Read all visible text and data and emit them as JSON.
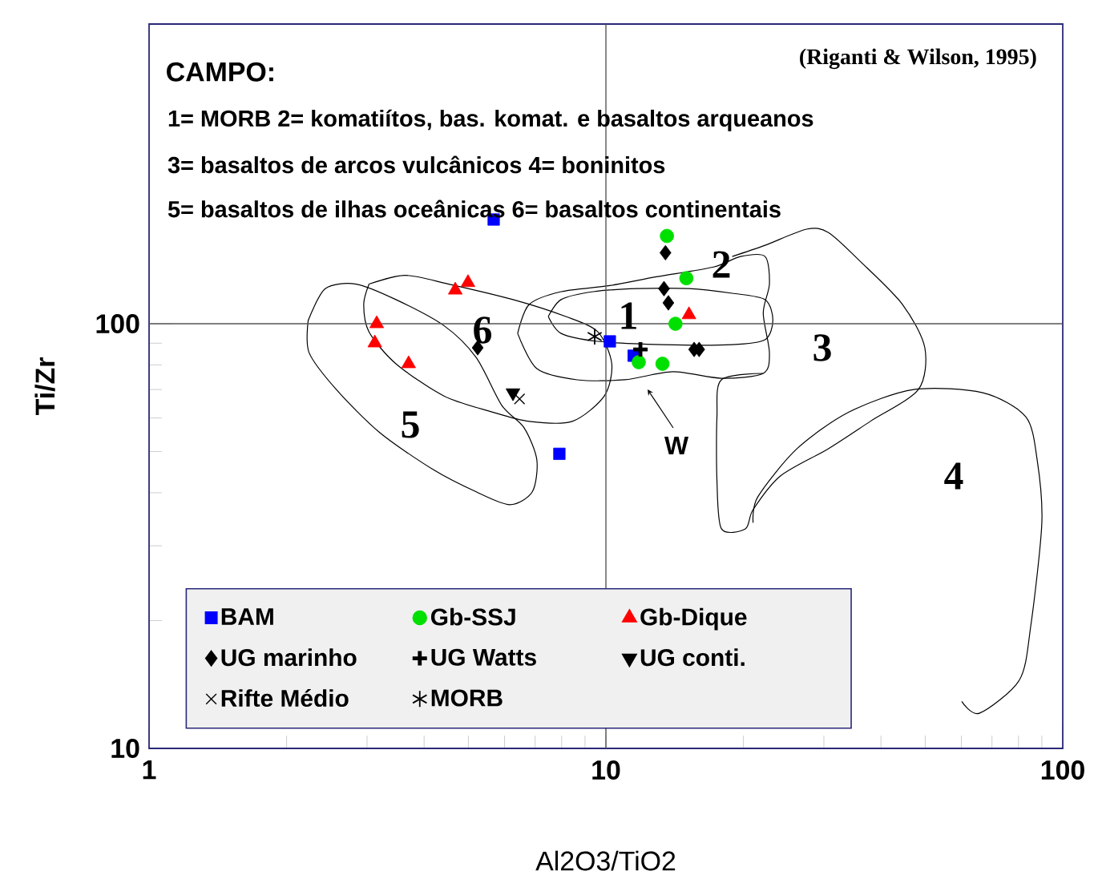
{
  "chart_data": {
    "type": "scatter",
    "xlabel": "Al2O3/TiO2",
    "ylabel": "Ti/Zr",
    "log": "xy",
    "xlim": [
      1,
      100
    ],
    "ylim": [
      10,
      508
    ],
    "xticks": [
      1,
      10,
      100
    ],
    "yticks": [
      10,
      100
    ],
    "legend": "bottom",
    "ref_lines": [
      {
        "axis": "x",
        "value": 10,
        "color": "#555555"
      },
      {
        "axis": "y",
        "value": 100,
        "color": "#555555"
      }
    ],
    "annotations": [
      "CAMPO:",
      "(Riganti & Wilson, 1995)",
      "1= MORB  2= komatiítos, bas. komat. e basaltos arqueanos",
      "3= basaltos de arcos vulcânicos  4= boninitos",
      "5= basaltos de ilhas oceânicas  6= basaltos continentais",
      "1",
      "2",
      "3",
      "4",
      "5",
      "6",
      "W"
    ],
    "series": [
      {
        "name": "BAM",
        "marker": "square",
        "color": "#0000ff",
        "x": [
          5.68,
          10.2,
          11.5,
          7.91
        ],
        "values": [
          176,
          90.9,
          84.1,
          49.4
        ]
      },
      {
        "name": "Gb-SSJ",
        "marker": "circle",
        "color": "#00e000",
        "x": [
          13.6,
          15.0,
          14.2,
          11.8,
          13.3
        ],
        "values": [
          161,
          128,
          100,
          81.2,
          80.5
        ]
      },
      {
        "name": "Gb-Dique",
        "marker": "triangle",
        "color": "#ff0000",
        "x": [
          4.99,
          4.68,
          3.15,
          3.12,
          3.7,
          15.2
        ],
        "values": [
          125,
          120,
          100,
          90.1,
          80.5,
          105
        ]
      },
      {
        "name": "UG marinho",
        "marker": "diamond",
        "color": "#000000",
        "x": [
          13.5,
          13.4,
          13.7,
          15.6,
          16.0,
          5.24
        ],
        "values": [
          147,
          121,
          112,
          87.0,
          87.0,
          87.8
        ]
      },
      {
        "name": "UG Watts",
        "marker": "cross",
        "color": "#000000",
        "x": [
          11.9
        ],
        "values": [
          87.0
        ]
      },
      {
        "name": "UG conti.",
        "marker": "triangle-down",
        "color": "#000000",
        "x": [
          6.26
        ],
        "values": [
          68.8
        ]
      },
      {
        "name": "Rifte Médio",
        "marker": "x",
        "color": "#000000",
        "x": [
          6.47
        ],
        "values": [
          66.5
        ]
      },
      {
        "name": "MORB",
        "color": "#000000",
        "x": [
          9.45
        ],
        "values": [
          93.3
        ]
      }
    ]
  }
}
